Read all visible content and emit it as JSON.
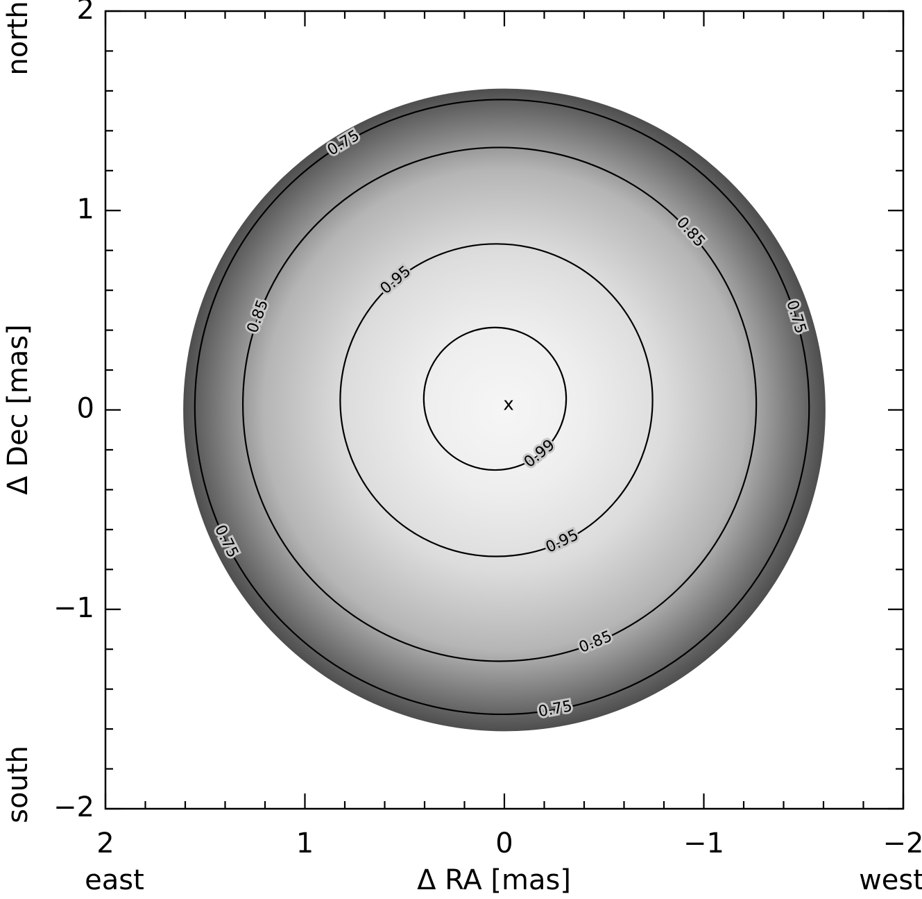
{
  "chart_data": {
    "type": "contour",
    "xlabel": "Δ RA [mas]",
    "ylabel": "Δ Dec [mas]",
    "annotations": {
      "east": "east",
      "west": "west",
      "north": "north",
      "south": "south"
    },
    "xlim": [
      2,
      -2
    ],
    "ylim": [
      -2,
      2
    ],
    "xticks": [
      2,
      1,
      0,
      {
        "value": -1,
        "label": "−1"
      },
      {
        "value": -2,
        "label": "−2"
      }
    ],
    "yticks": [
      {
        "value": -2,
        "label": "−2"
      },
      {
        "value": -1,
        "label": "−1"
      },
      0,
      1,
      2
    ],
    "xminorticks": [
      1.8,
      1.6,
      1.4,
      1.2,
      0.8,
      0.6,
      0.4,
      0.2,
      -0.2,
      -0.4,
      -0.6,
      -0.8,
      -1.2,
      -1.4,
      -1.6,
      -1.8
    ],
    "yminorticks": [
      -1.8,
      -1.6,
      -1.4,
      -1.2,
      -0.8,
      -0.6,
      -0.4,
      -0.2,
      0.2,
      0.4,
      0.6,
      0.8,
      1.2,
      1.4,
      1.6,
      1.8
    ],
    "disk": {
      "center": [
        0,
        0
      ],
      "radius": 1.61,
      "colors": [
        "#f6f6f6",
        "#eeeeee",
        "#dcdcdc",
        "#b5b5b5",
        "#4e4e4e"
      ]
    },
    "contours": [
      {
        "level": 0.75,
        "center": [
          0.012,
          0.015
        ],
        "radius": 1.54
      },
      {
        "level": 0.85,
        "center": [
          0.024,
          0.028
        ],
        "radius": 1.287
      },
      {
        "level": 0.95,
        "center": [
          0.04,
          0.049
        ],
        "radius": 0.783
      },
      {
        "level": 0.99,
        "center": [
          0.047,
          0.056
        ],
        "radius": 0.357
      }
    ],
    "contour_color": "#000000",
    "marker": {
      "label": "x",
      "x": -0.021,
      "y": 0.026
    }
  }
}
